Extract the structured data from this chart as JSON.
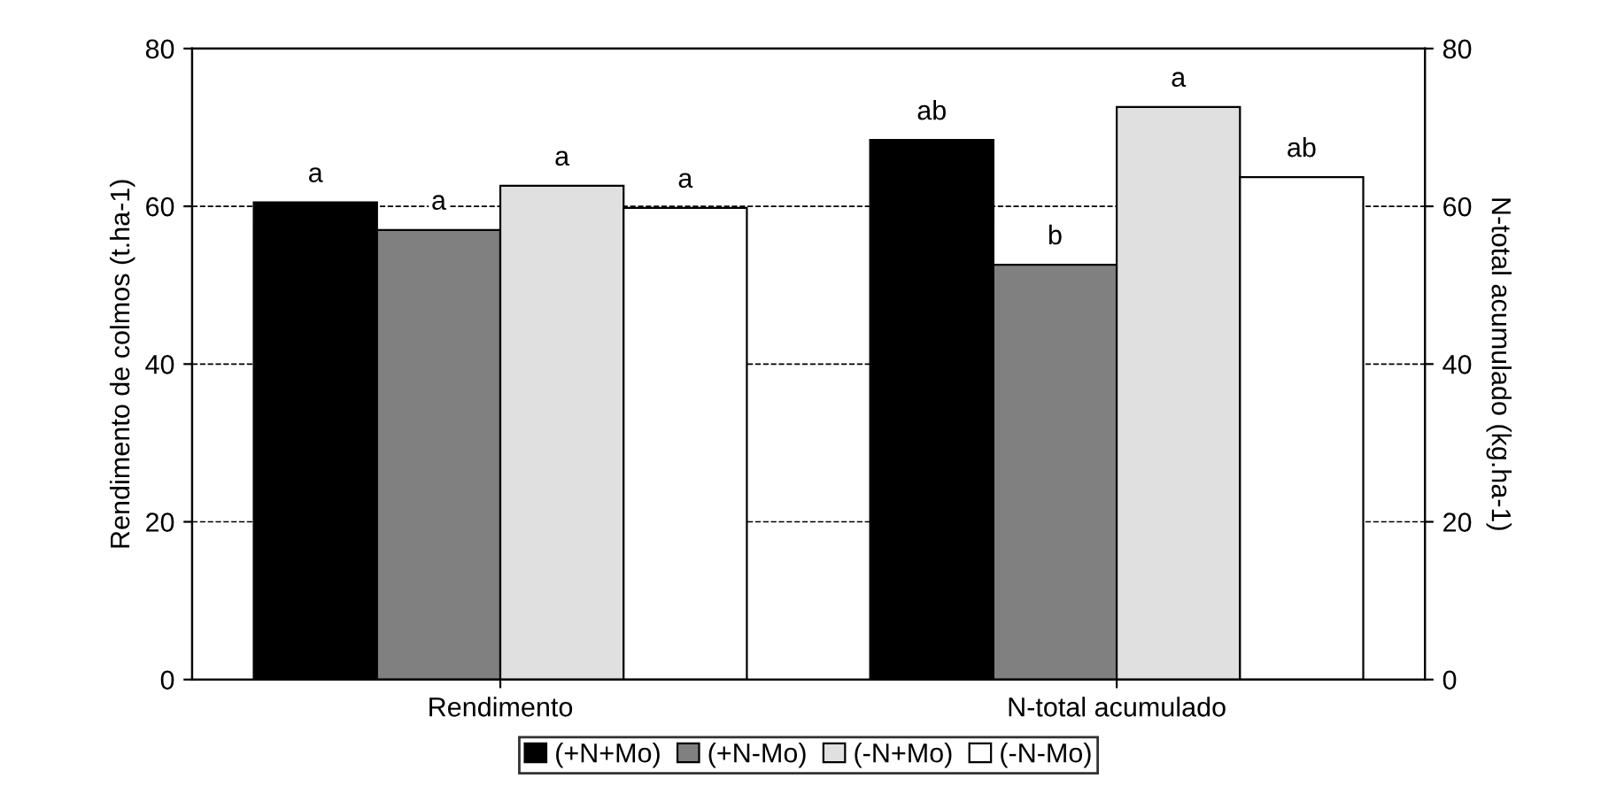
{
  "chart_data": {
    "type": "bar",
    "ylabel": "Rendimento de colmos (t.ha-1)",
    "y2label": "N-total acumulado (kg.ha-1)",
    "categories": [
      "Rendimento",
      "N-total acumulado"
    ],
    "series": [
      {
        "name": "(+N+Mo)",
        "color": "#000000",
        "values": [
          60.5,
          68.4
        ],
        "value_labels": [
          "a",
          "ab"
        ]
      },
      {
        "name": "(+N-Mo)",
        "color": "#808080",
        "values": [
          57,
          52.6
        ],
        "value_labels": [
          "a",
          "b"
        ]
      },
      {
        "name": "(-N+Mo)",
        "color": "#e0e0e0",
        "values": [
          62.6,
          72.6
        ],
        "value_labels": [
          "a",
          "a"
        ]
      },
      {
        "name": "(-N-Mo)",
        "color": "#ffffff",
        "values": [
          59.8,
          63.7
        ],
        "value_labels": [
          "a",
          "ab"
        ]
      }
    ],
    "ylim": [
      0,
      80
    ],
    "yticks": [
      0,
      20,
      40,
      60,
      80
    ],
    "y2lim": [
      0,
      80
    ],
    "y2ticks": [
      0,
      20,
      40,
      60,
      80
    ],
    "grid": "y",
    "line_style": "dashed",
    "legend": "bottom"
  }
}
